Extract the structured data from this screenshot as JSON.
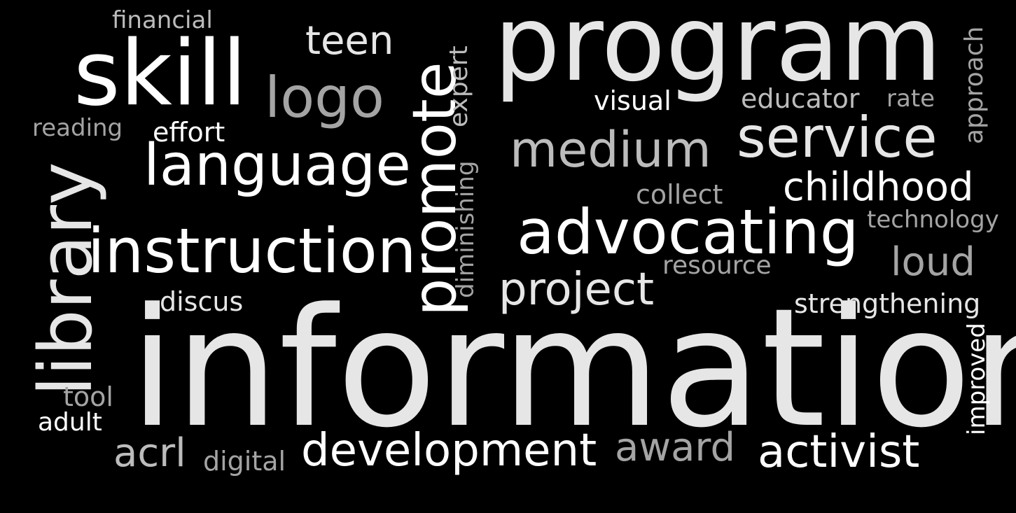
{
  "colors": {
    "background": "#000000",
    "white": "#ffffff",
    "light_gray": "#e6e6e6",
    "mid_gray": "#bcbcbc",
    "dark_gray": "#a4a4a4"
  },
  "words": {
    "information": "information",
    "program": "program",
    "skill": "skill",
    "promote": "promote",
    "library": "library",
    "instruction": "instruction",
    "language": "language",
    "advocating": "advocating",
    "service": "service",
    "medium": "medium",
    "logo": "logo",
    "childhood": "childhood",
    "development": "development",
    "activist": "activist",
    "project": "project",
    "award": "award",
    "teen": "teen",
    "loud": "loud",
    "acrl": "acrl",
    "educator": "educator",
    "strengthening": "strengthening",
    "expert": "expert",
    "diminishing": "diminishing",
    "approach": "approach",
    "improved": "improved",
    "visual": "visual",
    "collect": "collect",
    "technology": "technology",
    "resource": "resource",
    "reading": "reading",
    "effort": "effort",
    "financial": "financial",
    "discus": "discus",
    "tool": "tool",
    "adult": "adult",
    "digital": "digital",
    "rate": "rate"
  }
}
